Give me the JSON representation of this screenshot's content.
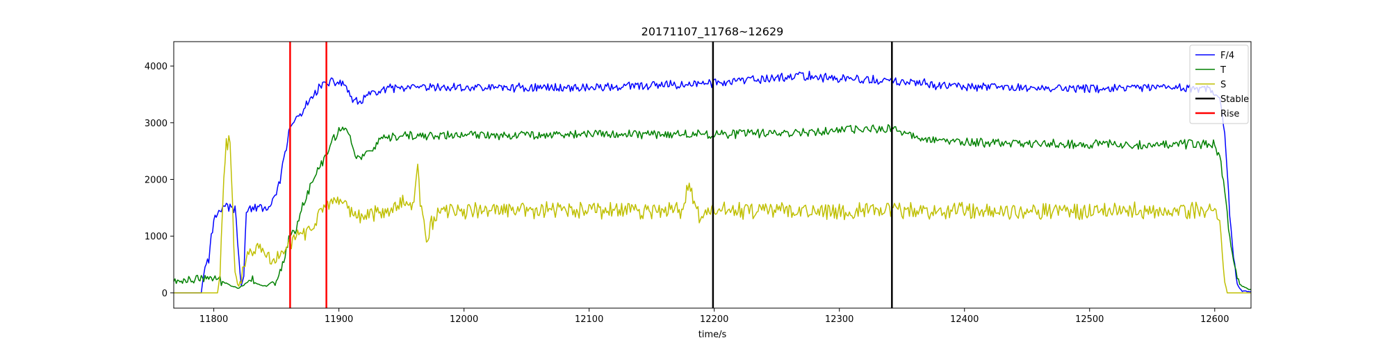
{
  "chart_data": {
    "type": "line",
    "title": "20171107_11768~12629",
    "xlabel": "time/s",
    "ylabel": "",
    "xlim": [
      11768,
      12629
    ],
    "ylim": [
      -270,
      4430
    ],
    "xticks": [
      11800,
      11900,
      12000,
      12100,
      12200,
      12300,
      12400,
      12500,
      12600
    ],
    "yticks": [
      0,
      1000,
      2000,
      3000,
      4000
    ],
    "legend_position": "upper-right",
    "grid": false,
    "series": [
      {
        "name": "F/4",
        "color": "#0000ff",
        "profile": [
          [
            11768,
            0
          ],
          [
            11790,
            0
          ],
          [
            11792,
            350
          ],
          [
            11796,
            600
          ],
          [
            11798,
            1000
          ],
          [
            11801,
            1350
          ],
          [
            11806,
            1500
          ],
          [
            11812,
            1520
          ],
          [
            11817,
            1480
          ],
          [
            11820,
            600
          ],
          [
            11822,
            120
          ],
          [
            11824,
            300
          ],
          [
            11826,
            1480
          ],
          [
            11836,
            1490
          ],
          [
            11846,
            1520
          ],
          [
            11850,
            1750
          ],
          [
            11853,
            2000
          ],
          [
            11856,
            2350
          ],
          [
            11858,
            2500
          ],
          [
            11861,
            2950
          ],
          [
            11870,
            3150
          ],
          [
            11878,
            3450
          ],
          [
            11885,
            3650
          ],
          [
            11892,
            3700
          ],
          [
            11900,
            3720
          ],
          [
            11906,
            3650
          ],
          [
            11910,
            3400
          ],
          [
            11915,
            3350
          ],
          [
            11925,
            3500
          ],
          [
            11940,
            3600
          ],
          [
            12000,
            3620
          ],
          [
            12100,
            3620
          ],
          [
            12150,
            3650
          ],
          [
            12198,
            3700
          ],
          [
            12230,
            3750
          ],
          [
            12270,
            3830
          ],
          [
            12300,
            3780
          ],
          [
            12342,
            3730
          ],
          [
            12400,
            3630
          ],
          [
            12500,
            3600
          ],
          [
            12590,
            3620
          ],
          [
            12598,
            3550
          ],
          [
            12604,
            3400
          ],
          [
            12608,
            2800
          ],
          [
            12612,
            1400
          ],
          [
            12615,
            600
          ],
          [
            12618,
            150
          ],
          [
            12622,
            30
          ],
          [
            12629,
            20
          ]
        ],
        "noise": 70
      },
      {
        "name": "T",
        "color": "#008000",
        "profile": [
          [
            11768,
            200
          ],
          [
            11785,
            240
          ],
          [
            11800,
            260
          ],
          [
            11815,
            120
          ],
          [
            11820,
            80
          ],
          [
            11825,
            160
          ],
          [
            11830,
            250
          ],
          [
            11835,
            150
          ],
          [
            11842,
            120
          ],
          [
            11850,
            230
          ],
          [
            11855,
            500
          ],
          [
            11860,
            950
          ],
          [
            11866,
            1150
          ],
          [
            11870,
            1500
          ],
          [
            11876,
            1800
          ],
          [
            11882,
            2100
          ],
          [
            11890,
            2450
          ],
          [
            11895,
            2700
          ],
          [
            11903,
            2950
          ],
          [
            11908,
            2800
          ],
          [
            11912,
            2500
          ],
          [
            11916,
            2360
          ],
          [
            11922,
            2450
          ],
          [
            11935,
            2700
          ],
          [
            11950,
            2760
          ],
          [
            12000,
            2780
          ],
          [
            12100,
            2800
          ],
          [
            12198,
            2800
          ],
          [
            12250,
            2820
          ],
          [
            12342,
            2900
          ],
          [
            12360,
            2750
          ],
          [
            12400,
            2650
          ],
          [
            12500,
            2620
          ],
          [
            12590,
            2620
          ],
          [
            12600,
            2620
          ],
          [
            12604,
            2400
          ],
          [
            12608,
            1800
          ],
          [
            12612,
            1000
          ],
          [
            12616,
            450
          ],
          [
            12620,
            150
          ],
          [
            12625,
            80
          ],
          [
            12629,
            60
          ]
        ],
        "noise": 70
      },
      {
        "name": "S",
        "color": "#bfbf00",
        "profile": [
          [
            11768,
            0
          ],
          [
            11791,
            0
          ],
          [
            11803,
            0
          ],
          [
            11805,
            300
          ],
          [
            11808,
            2000
          ],
          [
            11810,
            2600
          ],
          [
            11813,
            2700
          ],
          [
            11815,
            1500
          ],
          [
            11817,
            300
          ],
          [
            11820,
            100
          ],
          [
            11825,
            500
          ],
          [
            11830,
            800
          ],
          [
            11840,
            700
          ],
          [
            11848,
            550
          ],
          [
            11855,
            650
          ],
          [
            11861,
            900
          ],
          [
            11866,
            1000
          ],
          [
            11870,
            1000
          ],
          [
            11878,
            1150
          ],
          [
            11885,
            1450
          ],
          [
            11895,
            1550
          ],
          [
            11905,
            1500
          ],
          [
            11912,
            1380
          ],
          [
            11920,
            1350
          ],
          [
            11940,
            1500
          ],
          [
            11955,
            1600
          ],
          [
            11960,
            1600
          ],
          [
            11963,
            2200
          ],
          [
            11966,
            1400
          ],
          [
            11970,
            1000
          ],
          [
            11978,
            1400
          ],
          [
            12000,
            1450
          ],
          [
            12100,
            1450
          ],
          [
            12175,
            1450
          ],
          [
            12180,
            1950
          ],
          [
            12184,
            1550
          ],
          [
            12188,
            1350
          ],
          [
            12198,
            1450
          ],
          [
            12300,
            1450
          ],
          [
            12400,
            1450
          ],
          [
            12500,
            1450
          ],
          [
            12600,
            1450
          ],
          [
            12604,
            1200
          ],
          [
            12606,
            700
          ],
          [
            12608,
            200
          ],
          [
            12610,
            0
          ],
          [
            12629,
            0
          ]
        ],
        "noise": 130
      }
    ],
    "markers": [
      {
        "name": "Stable",
        "color": "#000000",
        "x": [
          12199,
          12342
        ]
      },
      {
        "name": "Rise",
        "color": "#ff0000",
        "x": [
          11861,
          11890
        ]
      }
    ]
  }
}
